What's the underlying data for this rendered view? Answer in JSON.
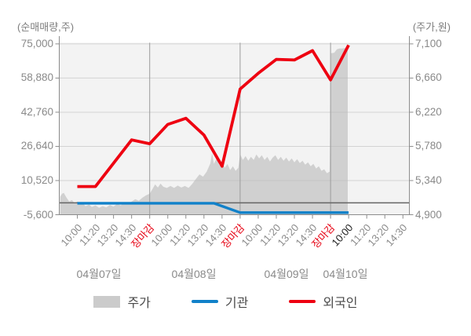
{
  "header": {
    "left_axis_label": "(순매매량,주)",
    "right_axis_label": "(주가,원)"
  },
  "y_axis_left": {
    "tick_labels": [
      "75,000",
      "58,880",
      "42,760",
      "26,640",
      "10,520",
      "-5,600"
    ],
    "min": -5600,
    "max": 75000
  },
  "y_axis_right": {
    "tick_labels": [
      "7,100",
      "6,660",
      "6,220",
      "5,780",
      "5,340",
      "4,900"
    ],
    "min": 4900,
    "max": 7100
  },
  "x_axis": {
    "days": [
      {
        "date": "04월07일",
        "times": [
          {
            "t": "10:00",
            "style": "normal"
          },
          {
            "t": "11:20",
            "style": "normal"
          },
          {
            "t": "13:20",
            "style": "normal"
          },
          {
            "t": "14:30",
            "style": "normal"
          },
          {
            "t": "장마감",
            "style": "close"
          }
        ]
      },
      {
        "date": "04월08일",
        "times": [
          {
            "t": "10:00",
            "style": "normal"
          },
          {
            "t": "11:20",
            "style": "normal"
          },
          {
            "t": "13:20",
            "style": "normal"
          },
          {
            "t": "14:30",
            "style": "normal"
          },
          {
            "t": "장마감",
            "style": "close"
          }
        ]
      },
      {
        "date": "04월09일",
        "times": [
          {
            "t": "10:00",
            "style": "normal"
          },
          {
            "t": "11:20",
            "style": "normal"
          },
          {
            "t": "13:20",
            "style": "normal"
          },
          {
            "t": "14:30",
            "style": "normal"
          },
          {
            "t": "장마감",
            "style": "close"
          }
        ]
      },
      {
        "date": "04월10일",
        "times": [
          {
            "t": "10:00",
            "style": "current"
          },
          {
            "t": "11:20",
            "style": "normal"
          },
          {
            "t": "13:20",
            "style": "normal"
          },
          {
            "t": "14:30",
            "style": "normal"
          }
        ]
      }
    ]
  },
  "legend": [
    {
      "label": "주가",
      "type": "area",
      "color": "#cbcbcb"
    },
    {
      "label": "기관",
      "type": "line",
      "color": "#1181c9"
    },
    {
      "label": "외국인",
      "type": "line",
      "color": "#ee0011"
    }
  ],
  "colors": {
    "plot_bg": "#f3f3f3",
    "grid_light": "#b9b9b9",
    "grid_day": "#9b9b9b",
    "border": "#8c8c8c",
    "zero_line": "#666666",
    "price_fill": "#d0d0d0",
    "institution_line": "#1181c9",
    "foreigner_line": "#ee0011",
    "tick_text": "#8a8a8a",
    "close_text": "#e60012",
    "current_text": "#222222"
  },
  "chart_data": {
    "type": "mixed",
    "title": "",
    "x_unit": "trading day position: 0 = 04/07 open, 1.0 = 04/07 close(장마감), 2.0 = 04/08 close, 3.0 = 04/09 close; ticks each day at 10:00, 11:20, 13:20, 14:30, 장마감",
    "axes": {
      "left": {
        "label": "(순매매량,주)",
        "min": -5600,
        "max": 75000,
        "ticks": [
          75000,
          58880,
          42760,
          26640,
          10520,
          -5600
        ]
      },
      "right": {
        "label": "(주가,원)",
        "min": 4900,
        "max": 7100,
        "ticks": [
          7100,
          6660,
          6220,
          5780,
          5340,
          4900
        ]
      }
    },
    "grid": true,
    "legend_position": "bottom",
    "series": [
      {
        "name": "주가",
        "type": "area",
        "axis": "right",
        "points": [
          [
            0.01,
            5130
          ],
          [
            0.03,
            5170
          ],
          [
            0.05,
            5180
          ],
          [
            0.08,
            5120
          ],
          [
            0.11,
            5070
          ],
          [
            0.14,
            5090
          ],
          [
            0.17,
            5050
          ],
          [
            0.2,
            5070
          ],
          [
            0.23,
            5030
          ],
          [
            0.26,
            5050
          ],
          [
            0.29,
            5010
          ],
          [
            0.33,
            5030
          ],
          [
            0.36,
            5000
          ],
          [
            0.4,
            5020
          ],
          [
            0.44,
            4990
          ],
          [
            0.48,
            5010
          ],
          [
            0.52,
            4995
          ],
          [
            0.56,
            5025
          ],
          [
            0.6,
            5005
          ],
          [
            0.64,
            5040
          ],
          [
            0.68,
            5020
          ],
          [
            0.72,
            5055
          ],
          [
            0.76,
            5035
          ],
          [
            0.8,
            5070
          ],
          [
            0.84,
            5100
          ],
          [
            0.88,
            5080
          ],
          [
            0.92,
            5120
          ],
          [
            0.96,
            5150
          ],
          [
            1.0,
            5170
          ],
          [
            1.03,
            5230
          ],
          [
            1.06,
            5290
          ],
          [
            1.09,
            5250
          ],
          [
            1.12,
            5300
          ],
          [
            1.15,
            5260
          ],
          [
            1.19,
            5245
          ],
          [
            1.23,
            5270
          ],
          [
            1.27,
            5245
          ],
          [
            1.31,
            5275
          ],
          [
            1.35,
            5250
          ],
          [
            1.39,
            5270
          ],
          [
            1.43,
            5245
          ],
          [
            1.47,
            5295
          ],
          [
            1.51,
            5360
          ],
          [
            1.55,
            5420
          ],
          [
            1.59,
            5390
          ],
          [
            1.63,
            5455
          ],
          [
            1.67,
            5560
          ],
          [
            1.69,
            5690
          ],
          [
            1.71,
            5555
          ],
          [
            1.74,
            5625
          ],
          [
            1.77,
            5535
          ],
          [
            1.8,
            5585
          ],
          [
            1.83,
            5505
          ],
          [
            1.86,
            5555
          ],
          [
            1.89,
            5475
          ],
          [
            1.92,
            5525
          ],
          [
            1.95,
            5465
          ],
          [
            1.98,
            5505
          ],
          [
            2.0,
            5680
          ],
          [
            2.03,
            5605
          ],
          [
            2.06,
            5655
          ],
          [
            2.09,
            5595
          ],
          [
            2.12,
            5645
          ],
          [
            2.15,
            5605
          ],
          [
            2.18,
            5675
          ],
          [
            2.21,
            5625
          ],
          [
            2.24,
            5665
          ],
          [
            2.27,
            5605
          ],
          [
            2.3,
            5645
          ],
          [
            2.33,
            5585
          ],
          [
            2.36,
            5635
          ],
          [
            2.39,
            5665
          ],
          [
            2.42,
            5605
          ],
          [
            2.45,
            5645
          ],
          [
            2.48,
            5595
          ],
          [
            2.51,
            5635
          ],
          [
            2.54,
            5585
          ],
          [
            2.57,
            5625
          ],
          [
            2.6,
            5575
          ],
          [
            2.63,
            5615
          ],
          [
            2.66,
            5565
          ],
          [
            2.69,
            5595
          ],
          [
            2.72,
            5545
          ],
          [
            2.75,
            5575
          ],
          [
            2.78,
            5525
          ],
          [
            2.81,
            5555
          ],
          [
            2.84,
            5495
          ],
          [
            2.87,
            5525
          ],
          [
            2.9,
            5465
          ],
          [
            2.93,
            5485
          ],
          [
            2.96,
            5435
          ],
          [
            2.99,
            5455
          ],
          [
            3.005,
            6980
          ],
          [
            3.04,
            6985
          ],
          [
            3.07,
            7030
          ],
          [
            3.1,
            7040
          ],
          [
            3.13,
            7040
          ],
          [
            3.16,
            7045
          ],
          [
            3.19,
            7040
          ]
        ]
      },
      {
        "name": "기관",
        "type": "line",
        "axis": "left",
        "points": [
          [
            0.2,
            -200
          ],
          [
            1.71,
            -200
          ],
          [
            2.0,
            -4600
          ],
          [
            3.2,
            -4600
          ]
        ]
      },
      {
        "name": "외국인",
        "type": "line",
        "axis": "left",
        "points": [
          [
            0.2,
            7700
          ],
          [
            0.4,
            7700
          ],
          [
            0.6,
            18700
          ],
          [
            0.8,
            29700
          ],
          [
            1.0,
            27900
          ],
          [
            1.2,
            37000
          ],
          [
            1.4,
            39900
          ],
          [
            1.6,
            32000
          ],
          [
            1.8,
            17300
          ],
          [
            2.0,
            53700
          ],
          [
            2.2,
            61100
          ],
          [
            2.4,
            67700
          ],
          [
            2.6,
            67400
          ],
          [
            2.8,
            71800
          ],
          [
            3.0,
            58000
          ],
          [
            3.2,
            74400
          ]
        ]
      }
    ],
    "annotations": {
      "zero_line_left_axis": 0
    }
  }
}
